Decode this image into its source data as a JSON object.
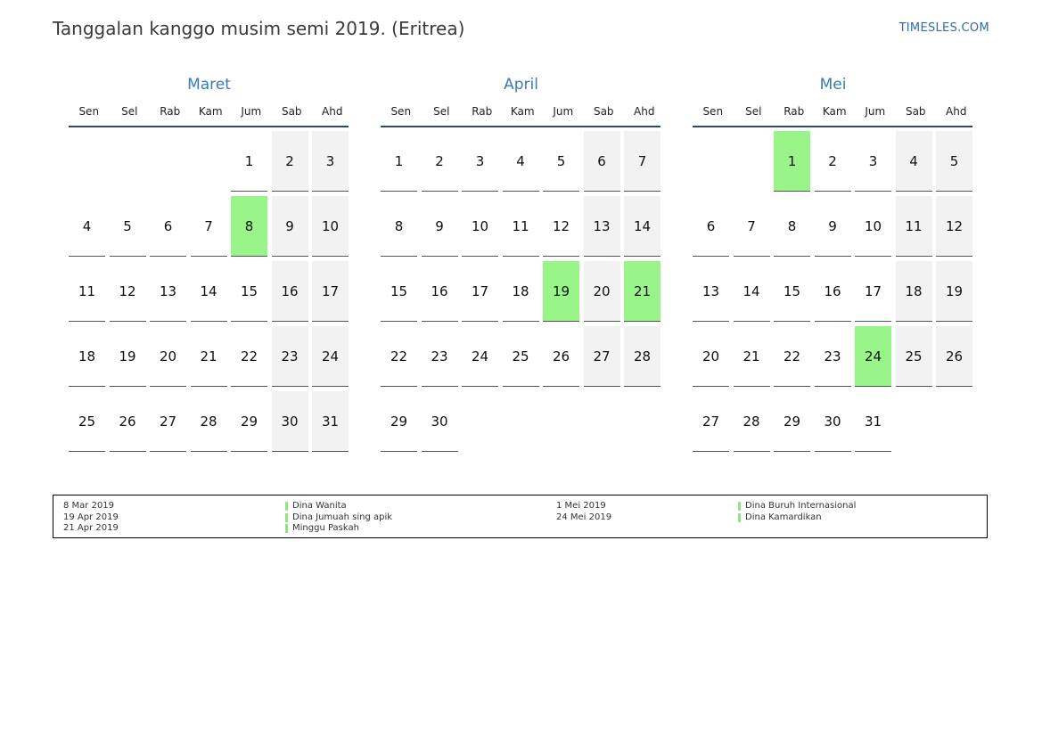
{
  "page": {
    "title": "Tanggalan kanggo musim semi 2019. (Eritrea)",
    "brand": "TIMESLES.COM"
  },
  "colors": {
    "holiday": "#99f58a",
    "weekend": "#f2f2f2",
    "month_title": "#3a7ab5",
    "header_rule": "#2b4a6e"
  },
  "weekdays": [
    "Sen",
    "Sel",
    "Rab",
    "Kam",
    "Jum",
    "Sab",
    "Ahd"
  ],
  "months": [
    {
      "name": "Maret",
      "start_offset": 4,
      "days": 31,
      "holidays": [
        8
      ]
    },
    {
      "name": "April",
      "start_offset": 0,
      "days": 30,
      "holidays": [
        19,
        21
      ]
    },
    {
      "name": "Mei",
      "start_offset": 2,
      "days": 31,
      "holidays": [
        1,
        24
      ]
    }
  ],
  "legend": {
    "left": [
      {
        "date": "8 Mar 2019",
        "name": "Dina Wanita"
      },
      {
        "date": "19 Apr 2019",
        "name": "Dina Jumuah sing apik"
      },
      {
        "date": "21 Apr 2019",
        "name": "Minggu Paskah"
      }
    ],
    "right": [
      {
        "date": "1 Mei 2019",
        "name": "Dina Buruh Internasional"
      },
      {
        "date": "24 Mei 2019",
        "name": "Dina Kamardikan"
      }
    ]
  }
}
